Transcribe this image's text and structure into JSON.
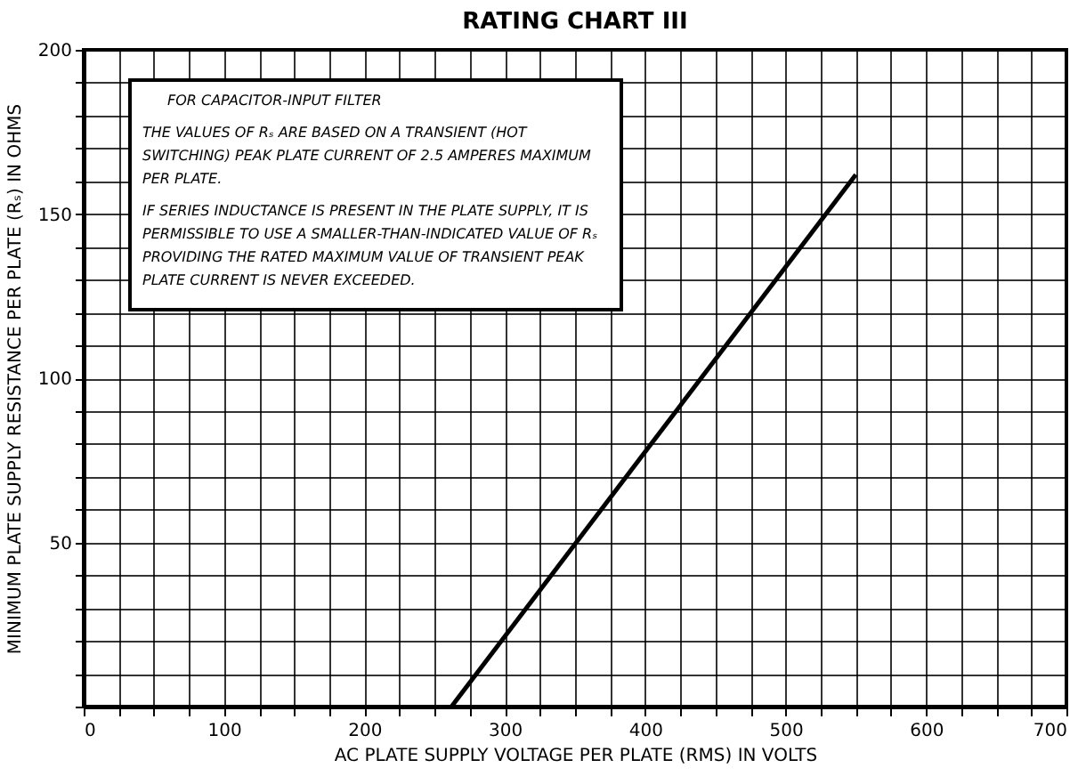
{
  "chart_data": {
    "type": "line",
    "title": "RATING CHART III",
    "xlabel": "AC PLATE SUPPLY VOLTAGE PER PLATE (RMS) IN VOLTS",
    "ylabel": "MINIMUM PLATE SUPPLY RESISTANCE PER PLATE (Rₛ) IN OHMS",
    "x": [
      262,
      550
    ],
    "series": [
      {
        "color": "#000000",
        "values": [
          0,
          162
        ]
      }
    ],
    "xlim": [
      0,
      700
    ],
    "ylim": [
      0,
      200
    ],
    "xticks": [
      0,
      {
        "value": 25,
        "label": null
      },
      {
        "value": 50,
        "label": null
      },
      {
        "value": 75,
        "label": null
      },
      100,
      {
        "value": 125,
        "label": null
      },
      {
        "value": 150,
        "label": null
      },
      {
        "value": 175,
        "label": null
      },
      200,
      {
        "value": 225,
        "label": null
      },
      {
        "value": 250,
        "label": null
      },
      {
        "value": 275,
        "label": null
      },
      300,
      {
        "value": 325,
        "label": null
      },
      {
        "value": 350,
        "label": null
      },
      {
        "value": 375,
        "label": null
      },
      400,
      {
        "value": 425,
        "label": null
      },
      {
        "value": 450,
        "label": null
      },
      {
        "value": 475,
        "label": null
      },
      500,
      {
        "value": 525,
        "label": null
      },
      {
        "value": 550,
        "label": null
      },
      {
        "value": 575,
        "label": null
      },
      600,
      {
        "value": 625,
        "label": null
      },
      {
        "value": 650,
        "label": null
      },
      {
        "value": 675,
        "label": null
      },
      700
    ],
    "yticks": [
      {
        "value": 0,
        "label": null
      },
      {
        "value": 10,
        "label": null
      },
      {
        "value": 20,
        "label": null
      },
      {
        "value": 30,
        "label": null
      },
      {
        "value": 40,
        "label": null
      },
      50,
      {
        "value": 60,
        "label": null
      },
      {
        "value": 70,
        "label": null
      },
      {
        "value": 80,
        "label": null
      },
      {
        "value": 90,
        "label": null
      },
      100,
      {
        "value": 110,
        "label": null
      },
      {
        "value": 120,
        "label": null
      },
      {
        "value": 130,
        "label": null
      },
      {
        "value": 140,
        "label": null
      },
      150,
      {
        "value": 160,
        "label": null
      },
      {
        "value": 170,
        "label": null
      },
      {
        "value": 180,
        "label": null
      },
      {
        "value": 190,
        "label": null
      },
      200
    ],
    "grid": true,
    "marker": "none",
    "line_style": "solid",
    "annotations": [
      "FOR CAPACITOR-INPUT FILTER",
      "THE VALUES OF Rₛ ARE BASED ON A TRANSIENT (HOT SWITCHING) PEAK PLATE CURRENT OF 2.5 AMPERES MAXIMUM PER PLATE.",
      "IF SERIES INDUCTANCE IS PRESENT IN THE PLATE SUPPLY, IT IS PERMISSIBLE TO USE A SMALLER-THAN-INDICATED VALUE OF Rₛ PROVIDING THE RATED MAXIMUM VALUE OF TRANSIENT PEAK PLATE CURRENT IS NEVER EXCEEDED."
    ]
  }
}
